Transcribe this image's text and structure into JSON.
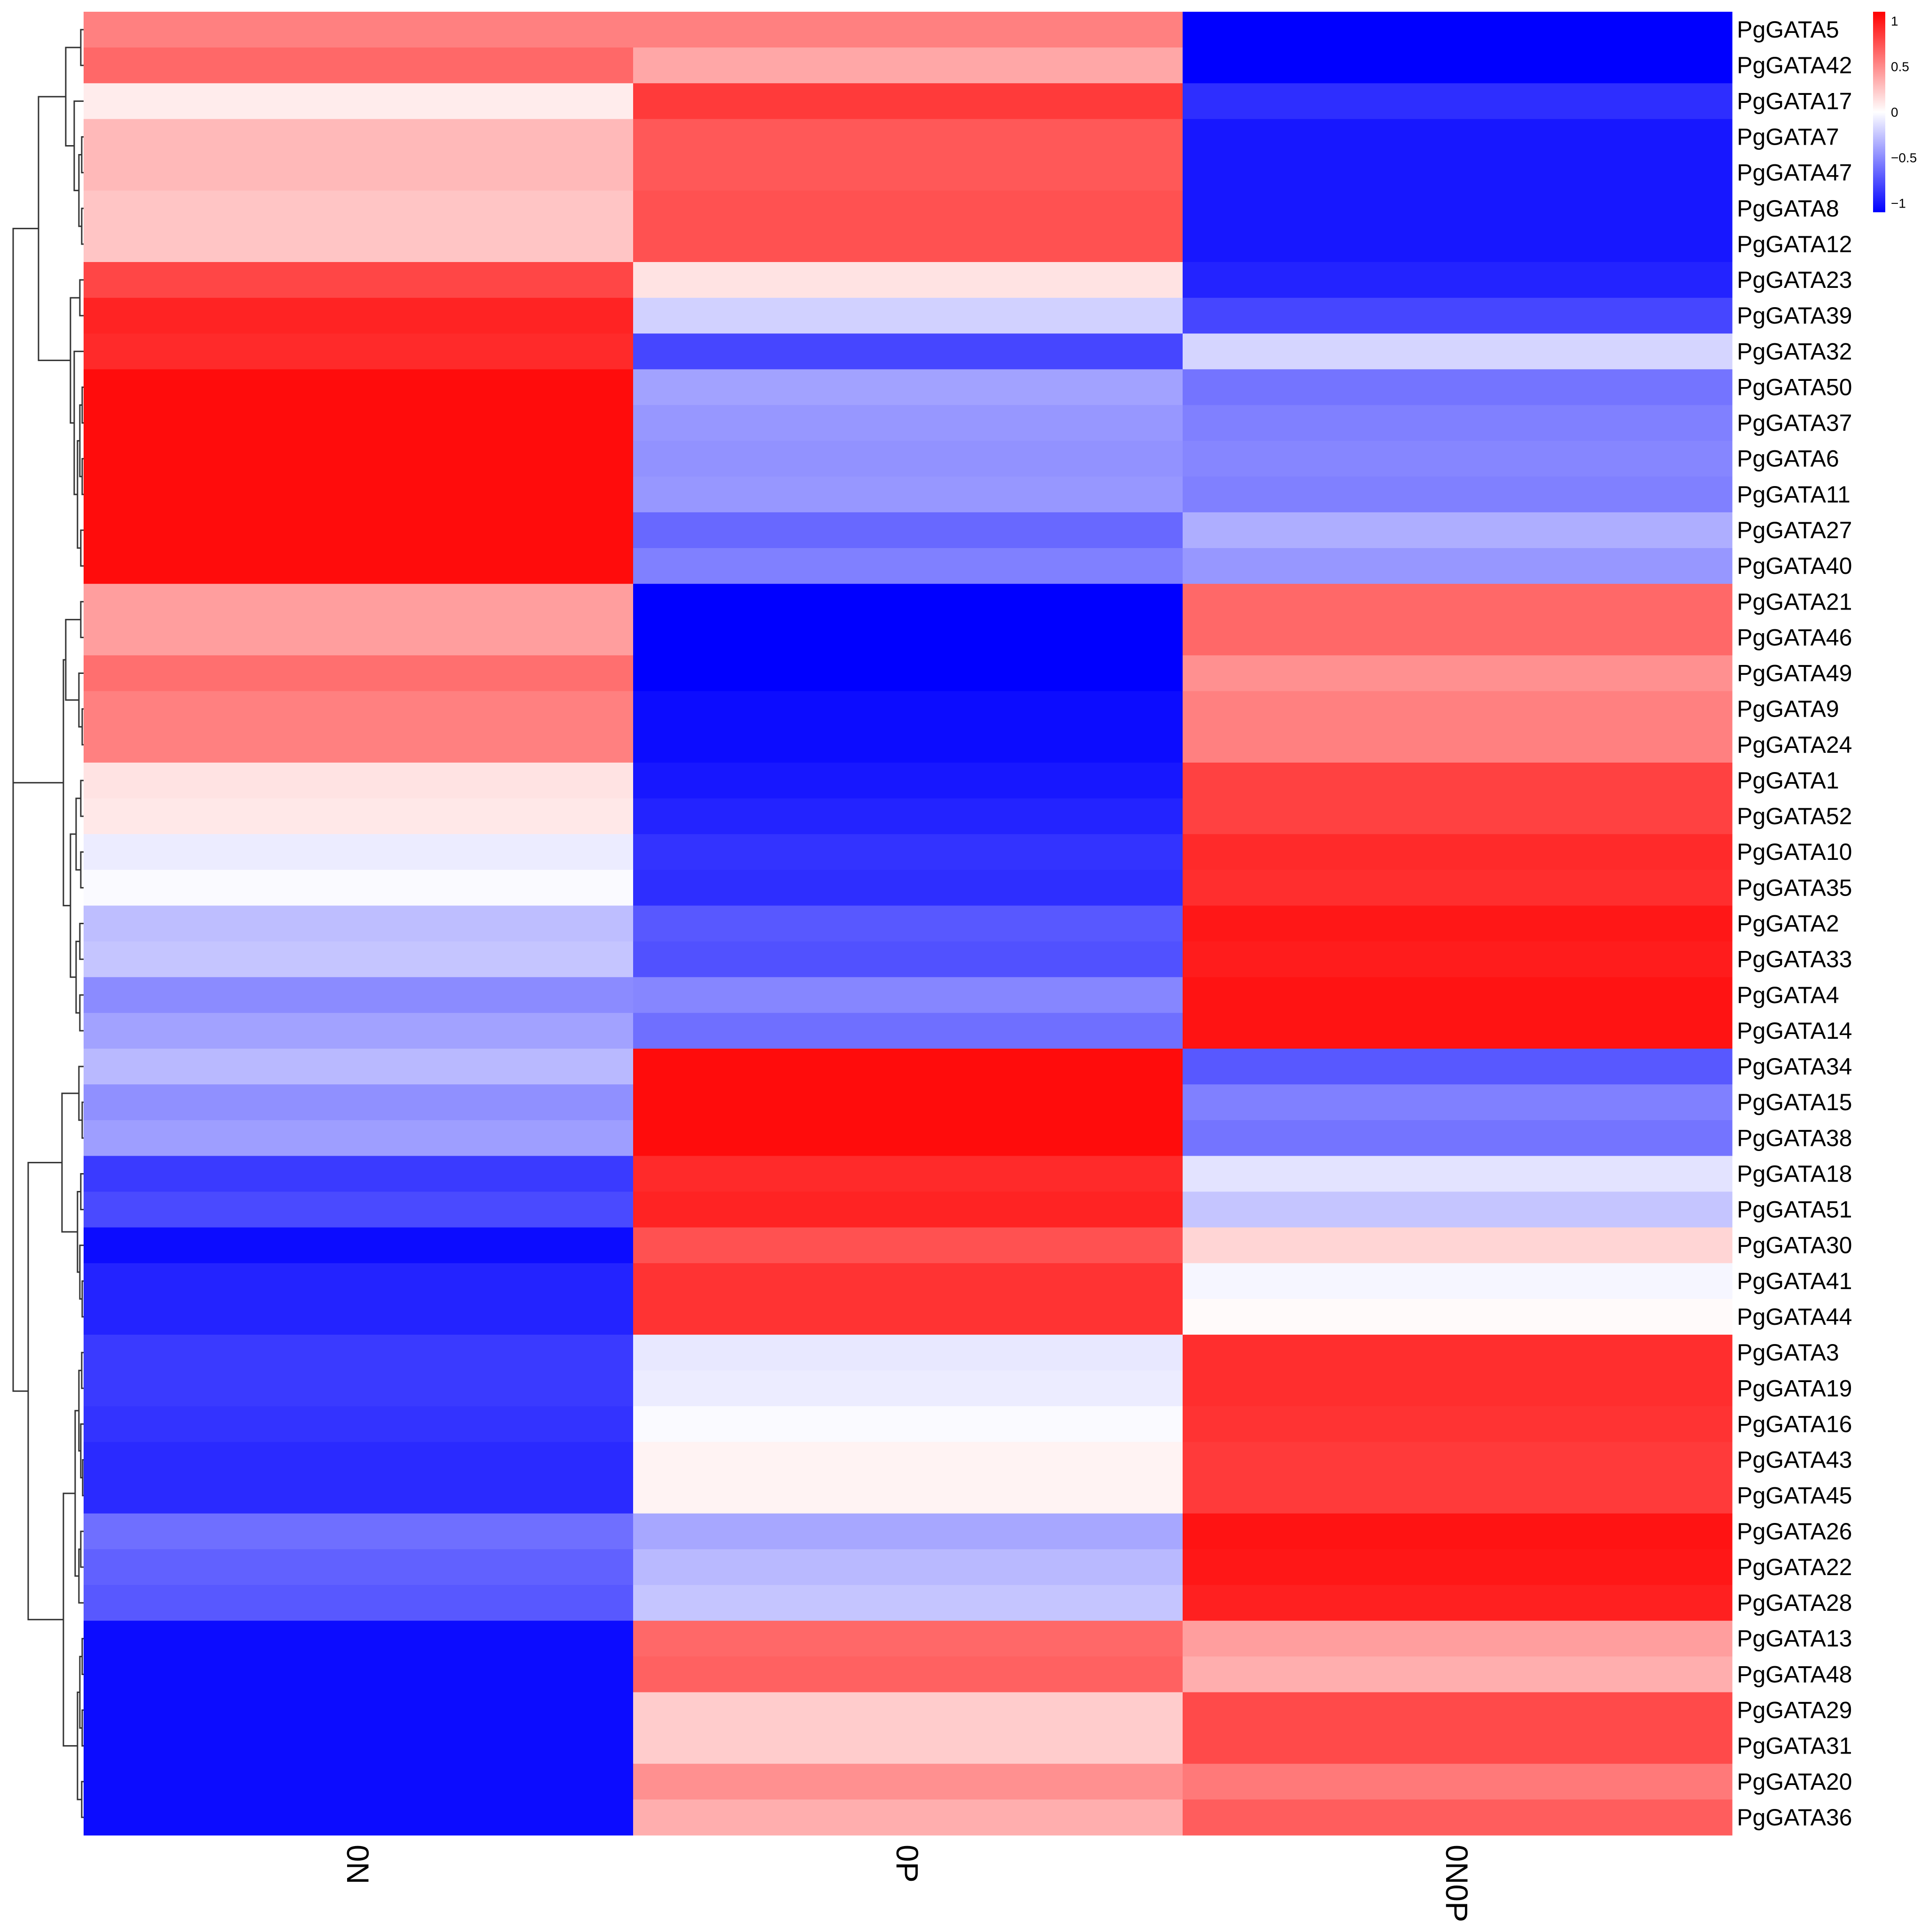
{
  "chart_data": {
    "type": "heatmap",
    "title": "",
    "columns": [
      "0N",
      "0P",
      "0N0P"
    ],
    "rows": [
      "PgGATA5",
      "PgGATA42",
      "PgGATA17",
      "PgGATA7",
      "PgGATA47",
      "PgGATA8",
      "PgGATA12",
      "PgGATA23",
      "PgGATA39",
      "PgGATA32",
      "PgGATA50",
      "PgGATA37",
      "PgGATA6",
      "PgGATA11",
      "PgGATA27",
      "PgGATA40",
      "PgGATA21",
      "PgGATA46",
      "PgGATA49",
      "PgGATA9",
      "PgGATA24",
      "PgGATA1",
      "PgGATA52",
      "PgGATA10",
      "PgGATA35",
      "PgGATA2",
      "PgGATA33",
      "PgGATA4",
      "PgGATA14",
      "PgGATA34",
      "PgGATA15",
      "PgGATA38",
      "PgGATA18",
      "PgGATA51",
      "PgGATA30",
      "PgGATA41",
      "PgGATA44",
      "PgGATA3",
      "PgGATA19",
      "PgGATA16",
      "PgGATA43",
      "PgGATA45",
      "PgGATA26",
      "PgGATA22",
      "PgGATA28",
      "PgGATA13",
      "PgGATA48",
      "PgGATA29",
      "PgGATA31",
      "PgGATA20",
      "PgGATA36"
    ],
    "values": [
      [
        0.55,
        0.55,
        -1.1
      ],
      [
        0.65,
        0.38,
        -1.1
      ],
      [
        0.08,
        0.85,
        -0.9
      ],
      [
        0.3,
        0.72,
        -1.0
      ],
      [
        0.3,
        0.72,
        -1.0
      ],
      [
        0.25,
        0.75,
        -1.0
      ],
      [
        0.25,
        0.75,
        -1.0
      ],
      [
        0.8,
        0.12,
        -0.95
      ],
      [
        0.95,
        -0.2,
        -0.8
      ],
      [
        0.92,
        -0.8,
        -0.18
      ],
      [
        1.05,
        -0.4,
        -0.6
      ],
      [
        1.05,
        -0.45,
        -0.55
      ],
      [
        1.05,
        -0.47,
        -0.52
      ],
      [
        1.05,
        -0.45,
        -0.55
      ],
      [
        1.05,
        -0.65,
        -0.35
      ],
      [
        1.05,
        -0.55,
        -0.45
      ],
      [
        0.42,
        -1.1,
        0.65
      ],
      [
        0.42,
        -1.1,
        0.65
      ],
      [
        0.62,
        -1.1,
        0.48
      ],
      [
        0.55,
        -1.05,
        0.55
      ],
      [
        0.55,
        -1.05,
        0.55
      ],
      [
        0.12,
        -1.0,
        0.82
      ],
      [
        0.1,
        -0.95,
        0.82
      ],
      [
        -0.08,
        -0.88,
        0.92
      ],
      [
        -0.02,
        -0.9,
        0.9
      ],
      [
        -0.28,
        -0.72,
        1.0
      ],
      [
        -0.25,
        -0.75,
        0.98
      ],
      [
        -0.5,
        -0.52,
        1.02
      ],
      [
        -0.4,
        -0.62,
        1.02
      ],
      [
        -0.3,
        1.05,
        -0.72
      ],
      [
        -0.48,
        1.05,
        -0.55
      ],
      [
        -0.42,
        1.05,
        -0.6
      ],
      [
        -0.85,
        0.92,
        -0.12
      ],
      [
        -0.78,
        0.95,
        -0.25
      ],
      [
        -1.05,
        0.75,
        0.18
      ],
      [
        -0.95,
        0.88,
        -0.04
      ],
      [
        -0.95,
        0.88,
        0.02
      ],
      [
        -0.85,
        -0.1,
        0.9
      ],
      [
        -0.85,
        -0.08,
        0.9
      ],
      [
        -0.88,
        -0.02,
        0.88
      ],
      [
        -0.92,
        0.05,
        0.85
      ],
      [
        -0.92,
        0.05,
        0.85
      ],
      [
        -0.62,
        -0.38,
        1.02
      ],
      [
        -0.68,
        -0.3,
        1.0
      ],
      [
        -0.72,
        -0.25,
        0.96
      ],
      [
        -1.05,
        0.65,
        0.42
      ],
      [
        -1.05,
        0.68,
        0.35
      ],
      [
        -1.05,
        0.22,
        0.78
      ],
      [
        -1.05,
        0.22,
        0.78
      ],
      [
        -1.05,
        0.48,
        0.58
      ],
      [
        -1.05,
        0.35,
        0.7
      ]
    ],
    "color_scale": {
      "low": "#0000ff",
      "mid": "#ffffff",
      "high": "#ff0000",
      "range": [
        -1.1,
        1.1
      ],
      "ticks": [
        1,
        0.5,
        0,
        -0.5,
        -1
      ],
      "tick_labels": [
        "1",
        "0.5",
        "0",
        "−0.5",
        "−1"
      ]
    },
    "dendrogram": "row",
    "legend_position": "top-right"
  }
}
